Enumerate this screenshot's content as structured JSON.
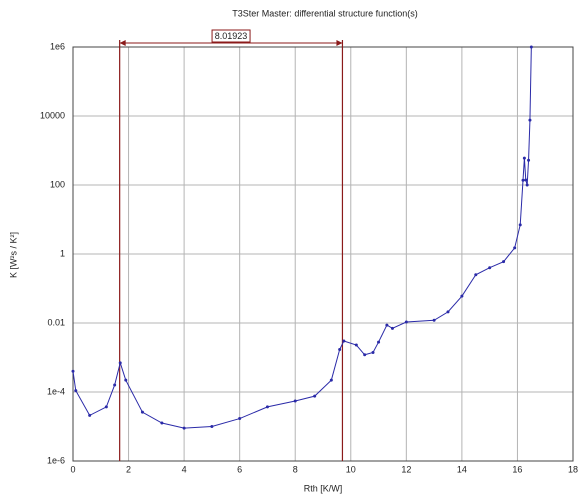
{
  "chart_data": {
    "type": "line",
    "title": "T3Ster Master: differential structure function(s)",
    "xlabel": "Rth [K/W]",
    "ylabel": "K [W²s / K²]",
    "log_y": true,
    "grid": true,
    "xlim": [
      0,
      18
    ],
    "xticks": [
      0,
      2,
      4,
      6,
      8,
      10,
      12,
      14,
      16,
      18
    ],
    "ylim": [
      1e-06,
      1000000
    ],
    "yticks": [
      {
        "value": 1e-06,
        "label": "1e-6"
      },
      {
        "value": 0.0001,
        "label": "1e-4"
      },
      0.01,
      1,
      100,
      10000,
      {
        "value": 1000000,
        "label": "1e6"
      }
    ],
    "cursors": [
      1.68,
      9.7
    ],
    "cursor_color": "#8b1a1a",
    "annotation": "8.01923",
    "series": [
      {
        "color": "#2a2aa8",
        "x": [
          0,
          0.1,
          0.6,
          1.2,
          1.5,
          1.7,
          1.9,
          2.5,
          3.2,
          4,
          5,
          6,
          7,
          8,
          8.7,
          9.3,
          9.6,
          9.75,
          10.2,
          10.5,
          10.8,
          11,
          11.3,
          11.5,
          12,
          13,
          13.5,
          14,
          14.5,
          15,
          15.5,
          15.9,
          16.1,
          16.2,
          16.25,
          16.3,
          16.35,
          16.4,
          16.45,
          16.5
        ],
        "values": [
          0.0004,
          0.00011,
          2.1e-05,
          3.7e-05,
          0.00016,
          0.0007,
          0.00022,
          2.6e-05,
          1.26e-05,
          9e-06,
          1e-05,
          1.7e-05,
          3.7e-05,
          5.5e-05,
          7.6e-05,
          0.00022,
          0.0017,
          0.003,
          0.0023,
          0.0012,
          0.0014,
          0.0028,
          0.0087,
          0.007,
          0.0107,
          0.012,
          0.021,
          0.06,
          0.25,
          0.4,
          0.6,
          1.5,
          7,
          137,
          600,
          140,
          100,
          520,
          7600,
          1000000
        ]
      }
    ]
  }
}
